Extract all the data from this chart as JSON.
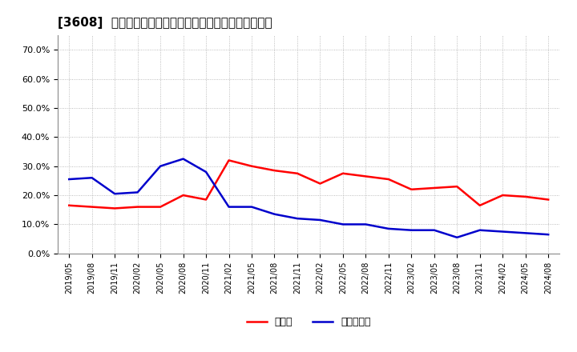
{
  "title": "[3608]  現預金、有利子負債の総資産に対する比率の推移",
  "x_labels": [
    "2019/05",
    "2019/08",
    "2019/11",
    "2020/02",
    "2020/05",
    "2020/08",
    "2020/11",
    "2021/02",
    "2021/05",
    "2021/08",
    "2021/11",
    "2022/02",
    "2022/05",
    "2022/08",
    "2022/11",
    "2023/02",
    "2023/05",
    "2023/08",
    "2023/11",
    "2024/02",
    "2024/05",
    "2024/08"
  ],
  "cash": [
    0.165,
    0.16,
    0.155,
    0.16,
    0.16,
    0.2,
    0.185,
    0.32,
    0.3,
    0.285,
    0.275,
    0.24,
    0.275,
    0.265,
    0.255,
    0.22,
    0.225,
    0.23,
    0.165,
    0.2,
    0.195,
    0.185
  ],
  "debt": [
    0.255,
    0.26,
    0.205,
    0.21,
    0.3,
    0.325,
    0.28,
    0.16,
    0.16,
    0.135,
    0.12,
    0.115,
    0.1,
    0.1,
    0.085,
    0.08,
    0.08,
    0.055,
    0.08,
    0.075,
    0.07,
    0.065
  ],
  "cash_color": "#ff0000",
  "debt_color": "#0000cc",
  "background_color": "#ffffff",
  "plot_bg_color": "#ffffff",
  "grid_color": "#aaaaaa",
  "ylim": [
    0.0,
    0.75
  ],
  "yticks": [
    0.0,
    0.1,
    0.2,
    0.3,
    0.4,
    0.5,
    0.6,
    0.7
  ],
  "legend_cash": "現預金",
  "legend_debt": "有利子負債",
  "line_width": 1.8,
  "title_fontsize": 11
}
